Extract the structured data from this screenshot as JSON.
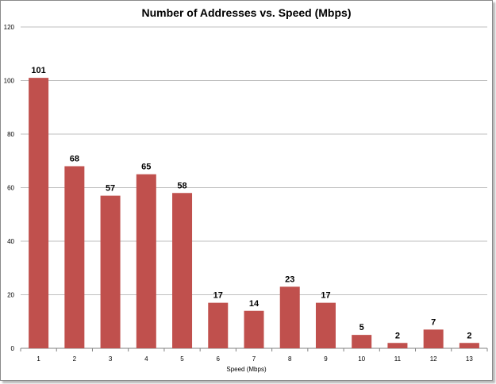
{
  "chart_data": {
    "type": "bar",
    "title": "Number of Addresses vs. Speed (Mbps)",
    "xlabel": "Speed (Mbps)",
    "ylabel": "",
    "categories": [
      "1",
      "2",
      "3",
      "4",
      "5",
      "6",
      "7",
      "8",
      "9",
      "10",
      "11",
      "12",
      "13"
    ],
    "values": [
      101,
      68,
      57,
      65,
      58,
      17,
      14,
      23,
      17,
      5,
      2,
      7,
      2
    ],
    "ylim": [
      0,
      120
    ],
    "yticks": [
      0,
      20,
      40,
      60,
      80,
      100,
      120
    ],
    "grid": true,
    "legend": "none",
    "bar_color": "#c0504d",
    "grid_color": "#bfbfbf"
  }
}
